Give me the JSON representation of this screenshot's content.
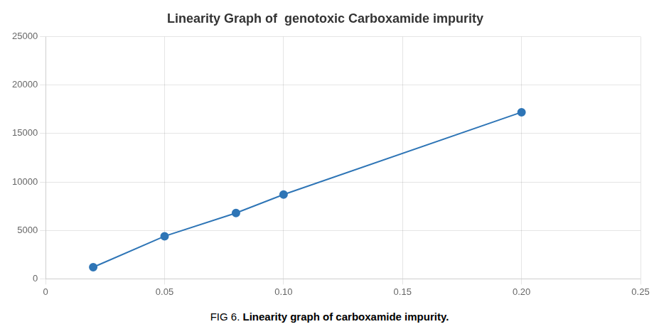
{
  "chart_data": {
    "type": "line",
    "title": "Linearity Graph of  genotoxic Carboxamide impurity",
    "annotations": [
      "FIG 6. ",
      "Linearity graph of carboxamide impurity."
    ],
    "x": [
      0.02,
      0.05,
      0.08,
      0.1,
      0.2
    ],
    "values": [
      1200,
      4400,
      6800,
      8700,
      17200
    ],
    "color": "#2E75B6",
    "marker": "circle",
    "xlim": [
      0,
      0.25
    ],
    "xticks": [
      0,
      0.05,
      {
        "value": 0.1,
        "label": "0.10"
      },
      0.15,
      {
        "value": 0.2,
        "label": "0.20"
      },
      0.25
    ],
    "ylim": [
      0,
      25000
    ],
    "yticks": [
      0,
      5000,
      10000,
      15000,
      20000,
      25000
    ],
    "grid": true
  }
}
